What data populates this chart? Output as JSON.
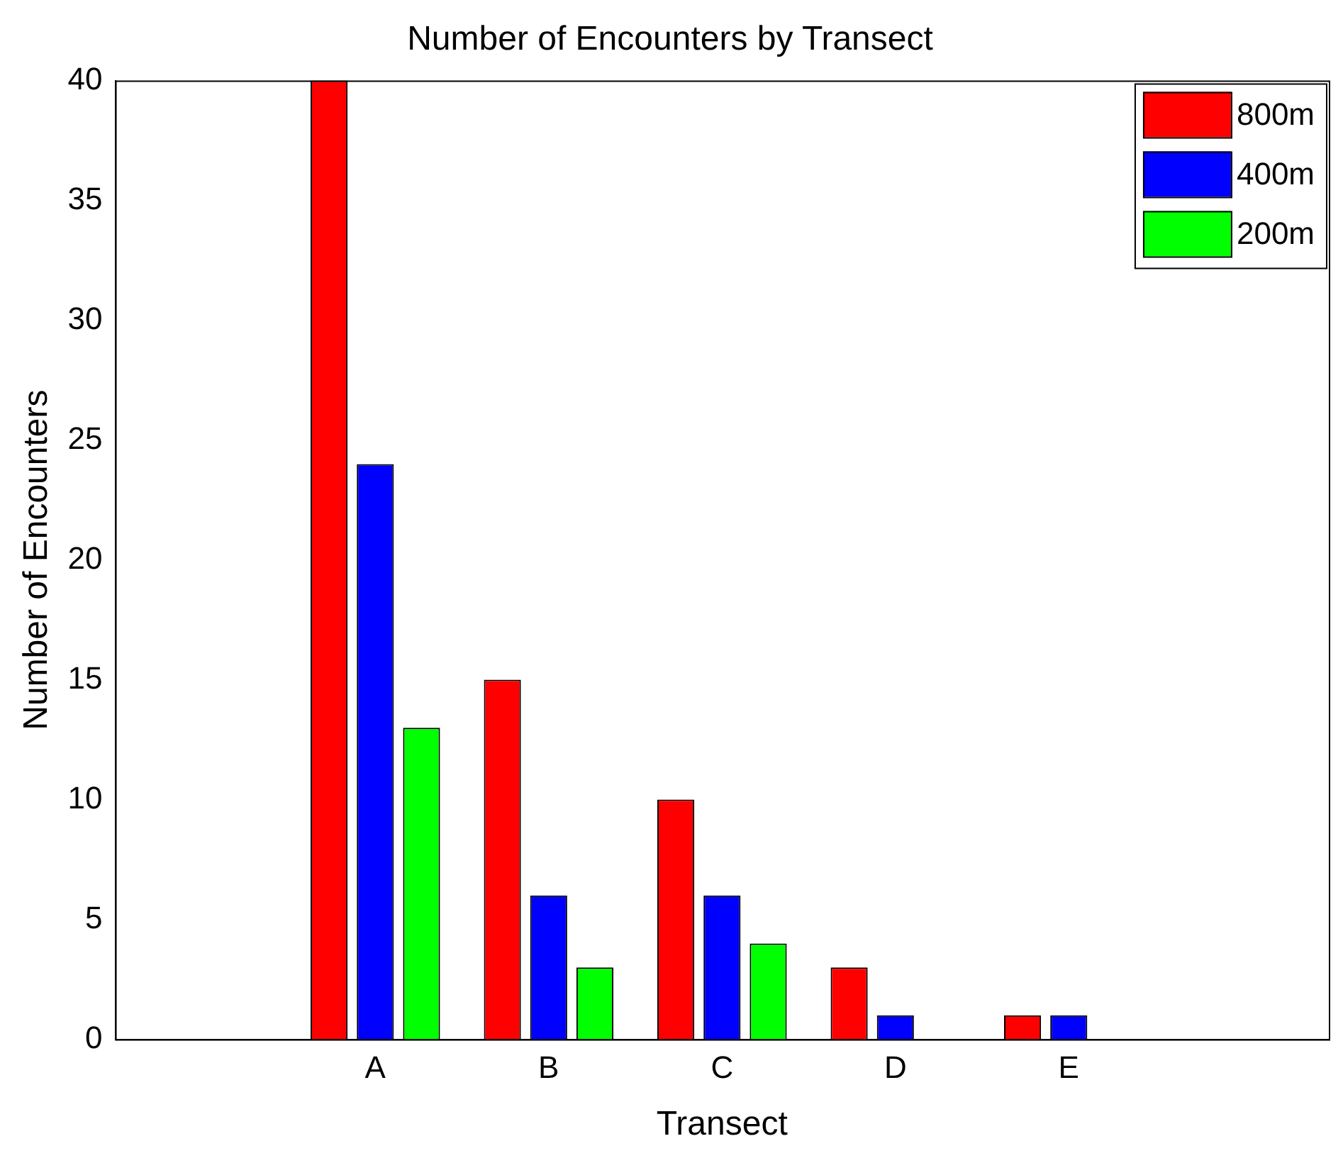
{
  "chart_data": {
    "type": "bar",
    "title": "Number of Encounters by Transect",
    "xlabel": "Transect",
    "ylabel": "Number of Encounters",
    "categories": [
      "A",
      "B",
      "C",
      "D",
      "E"
    ],
    "series": [
      {
        "name": "800m",
        "color": "#ff0000",
        "values": [
          40,
          15,
          10,
          3,
          1
        ]
      },
      {
        "name": "400m",
        "color": "#0000ff",
        "values": [
          24,
          6,
          6,
          1,
          1
        ]
      },
      {
        "name": "200m",
        "color": "#00ff00",
        "values": [
          13,
          3,
          4,
          0,
          0
        ]
      }
    ],
    "ylim": [
      0,
      40
    ],
    "yticks": [
      0,
      5,
      10,
      15,
      20,
      25,
      30,
      35,
      40
    ],
    "grid": false,
    "legend": "top right"
  }
}
